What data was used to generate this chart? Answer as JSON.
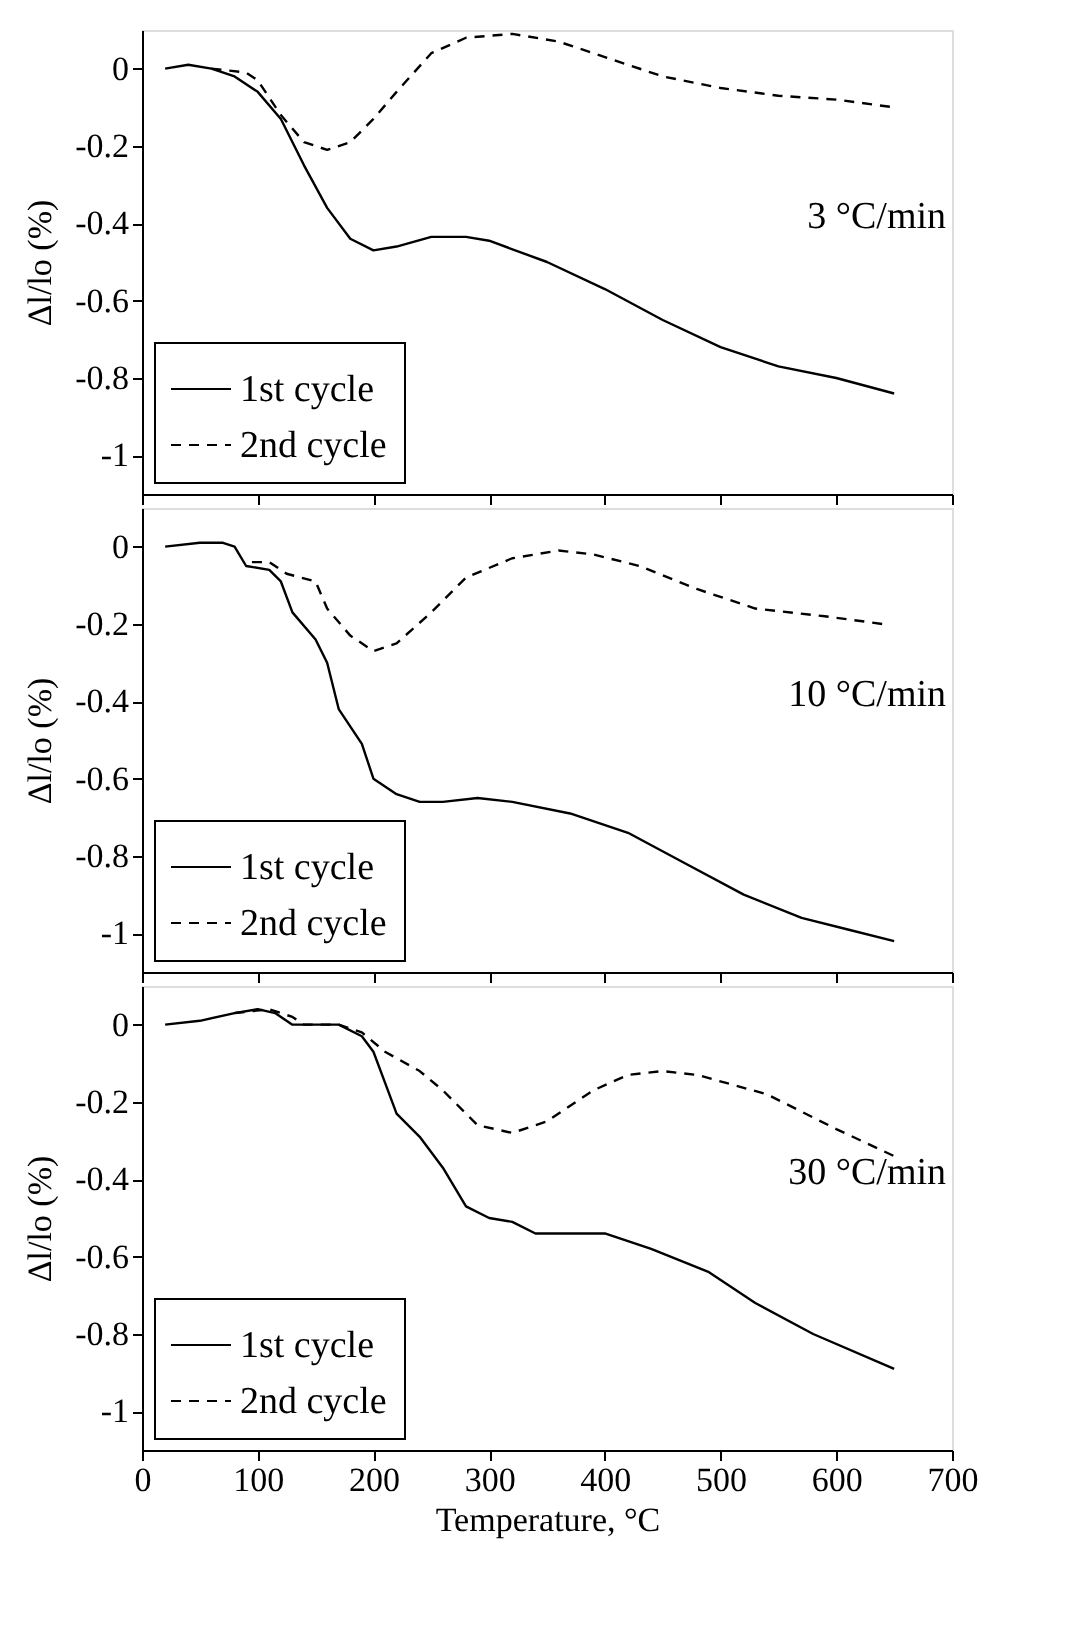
{
  "chart_data": [
    {
      "type": "line",
      "ylabel": "Δl/lo (%)",
      "xlim": [
        0,
        700
      ],
      "ylim": [
        -1.1,
        0.1
      ],
      "xticks": [
        0,
        100,
        200,
        300,
        400,
        500,
        600,
        700
      ],
      "yticks": [
        0,
        -0.2,
        -0.4,
        -0.6,
        -0.8,
        -1
      ],
      "tick_labels": "y",
      "legend": "bottom left",
      "grid": false,
      "marker": "none",
      "annotations": [
        "3 °C/min"
      ],
      "series": [
        {
          "name": "1st  cycle",
          "color": "#000000",
          "line_style": "solid",
          "x": [
            20,
            40,
            60,
            80,
            100,
            120,
            140,
            160,
            180,
            200,
            220,
            250,
            280,
            300,
            350,
            400,
            450,
            500,
            550,
            600,
            650
          ],
          "values": [
            0,
            0.01,
            0,
            -0.02,
            -0.06,
            -0.13,
            -0.25,
            -0.36,
            -0.44,
            -0.47,
            -0.46,
            -0.435,
            -0.435,
            -0.445,
            -0.5,
            -0.57,
            -0.65,
            -0.72,
            -0.77,
            -0.8,
            -0.84
          ]
        },
        {
          "name": "2nd cycle",
          "color": "#000000",
          "line_style": "dashed",
          "x": [
            60,
            90,
            100,
            120,
            140,
            160,
            180,
            200,
            220,
            250,
            280,
            320,
            360,
            400,
            450,
            500,
            550,
            600,
            650
          ],
          "values": [
            0,
            -0.01,
            -0.03,
            -0.12,
            -0.19,
            -0.21,
            -0.19,
            -0.13,
            -0.06,
            0.04,
            0.08,
            0.09,
            0.07,
            0.03,
            -0.02,
            -0.05,
            -0.07,
            -0.08,
            -0.1
          ]
        }
      ]
    },
    {
      "type": "line",
      "ylabel": "Δl/lo (%)",
      "xlim": [
        0,
        700
      ],
      "ylim": [
        -1.1,
        0.1
      ],
      "xticks": [
        0,
        100,
        200,
        300,
        400,
        500,
        600,
        700
      ],
      "yticks": [
        0,
        -0.2,
        -0.4,
        -0.6,
        -0.8,
        -1
      ],
      "tick_labels": "y",
      "legend": "bottom left",
      "grid": false,
      "marker": "none",
      "annotations": [
        "10 °C/min"
      ],
      "series": [
        {
          "name": "1st  cycle",
          "color": "#000000",
          "line_style": "solid",
          "x": [
            20,
            50,
            70,
            80,
            90,
            110,
            120,
            130,
            150,
            160,
            170,
            190,
            200,
            220,
            240,
            260,
            290,
            320,
            370,
            420,
            470,
            520,
            570,
            610,
            650
          ],
          "values": [
            0,
            0.01,
            0.01,
            0,
            -0.05,
            -0.06,
            -0.09,
            -0.17,
            -0.24,
            -0.3,
            -0.42,
            -0.51,
            -0.6,
            -0.64,
            -0.66,
            -0.66,
            -0.65,
            -0.66,
            -0.69,
            -0.74,
            -0.82,
            -0.9,
            -0.96,
            -0.99,
            -1.02
          ]
        },
        {
          "name": "2nd cycle",
          "color": "#000000",
          "line_style": "dashed",
          "x": [
            95,
            110,
            125,
            150,
            160,
            180,
            200,
            220,
            250,
            280,
            320,
            360,
            390,
            430,
            480,
            530,
            590,
            640
          ],
          "values": [
            -0.04,
            -0.04,
            -0.07,
            -0.09,
            -0.16,
            -0.23,
            -0.27,
            -0.25,
            -0.17,
            -0.08,
            -0.03,
            -0.01,
            -0.02,
            -0.05,
            -0.11,
            -0.16,
            -0.18,
            -0.2
          ]
        }
      ]
    },
    {
      "type": "line",
      "xlabel": "Temperature, °C",
      "ylabel": "Δl/lo (%)",
      "xlim": [
        0,
        700
      ],
      "ylim": [
        -1.1,
        0.1
      ],
      "xticks": [
        0,
        100,
        200,
        300,
        400,
        500,
        600,
        700
      ],
      "yticks": [
        0,
        -0.2,
        -0.4,
        -0.6,
        -0.8,
        -1
      ],
      "legend": "bottom left",
      "grid": false,
      "marker": "none",
      "annotations": [
        "30 °C/min"
      ],
      "series": [
        {
          "name": "1st  cycle",
          "color": "#000000",
          "line_style": "solid",
          "x": [
            20,
            50,
            80,
            100,
            115,
            130,
            170,
            190,
            200,
            210,
            220,
            240,
            260,
            280,
            300,
            320,
            340,
            400,
            440,
            490,
            530,
            580,
            650
          ],
          "values": [
            0,
            0.01,
            0.03,
            0.04,
            0.03,
            0,
            0,
            -0.03,
            -0.07,
            -0.15,
            -0.23,
            -0.29,
            -0.37,
            -0.47,
            -0.5,
            -0.51,
            -0.54,
            -0.54,
            -0.58,
            -0.64,
            -0.72,
            -0.8,
            -0.89
          ]
        },
        {
          "name": "2nd cycle",
          "color": "#000000",
          "line_style": "dashed",
          "x": [
            80,
            110,
            130,
            140,
            170,
            190,
            210,
            240,
            260,
            290,
            320,
            350,
            390,
            420,
            450,
            480,
            540,
            600,
            650
          ],
          "values": [
            0.03,
            0.04,
            0.02,
            0,
            0,
            -0.02,
            -0.07,
            -0.12,
            -0.17,
            -0.26,
            -0.28,
            -0.25,
            -0.17,
            -0.13,
            -0.12,
            -0.13,
            -0.18,
            -0.27,
            -0.34
          ]
        }
      ]
    }
  ]
}
